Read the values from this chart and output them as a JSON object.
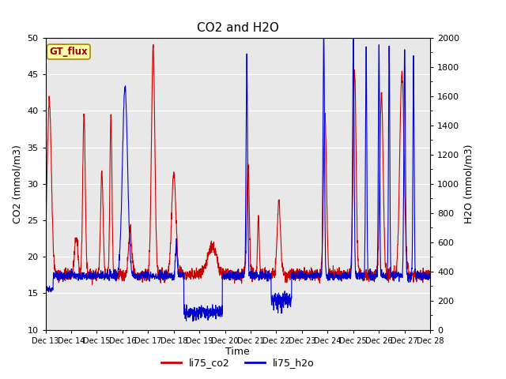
{
  "title": "CO2 and H2O",
  "xlabel": "Time",
  "ylabel_left": "CO2 (mmol/m3)",
  "ylabel_right": "H2O (mmol/m3)",
  "ylim_left": [
    10,
    50
  ],
  "ylim_right": [
    0,
    2000
  ],
  "yticks_left": [
    10,
    15,
    20,
    25,
    30,
    35,
    40,
    45,
    50
  ],
  "yticks_right": [
    0,
    200,
    400,
    600,
    800,
    1000,
    1200,
    1400,
    1600,
    1800,
    2000
  ],
  "x_tick_labels": [
    "Dec 13",
    "Dec 14",
    "Dec 15",
    "Dec 16",
    "Dec 17",
    "Dec 18",
    "Dec 19",
    "Dec 20",
    "Dec 21",
    "Dec 22",
    "Dec 23",
    "Dec 24",
    "Dec 25",
    "Dec 26",
    "Dec 27",
    "Dec 28"
  ],
  "color_co2": "#cc0000",
  "color_h2o": "#0000cc",
  "label_co2": "li75_co2",
  "label_h2o": "li75_h2o",
  "annotation_text": "GT_flux",
  "annotation_fg": "#990000",
  "annotation_bg": "#ffffaa",
  "annotation_edge": "#aa8800",
  "bg_color": "#ffffff",
  "plot_bg": "#e8e8e8",
  "grid_color": "#ffffff",
  "title_fontsize": 11,
  "axis_label_fontsize": 9,
  "tick_fontsize": 8,
  "linewidth": 0.8,
  "legend_fontsize": 9
}
